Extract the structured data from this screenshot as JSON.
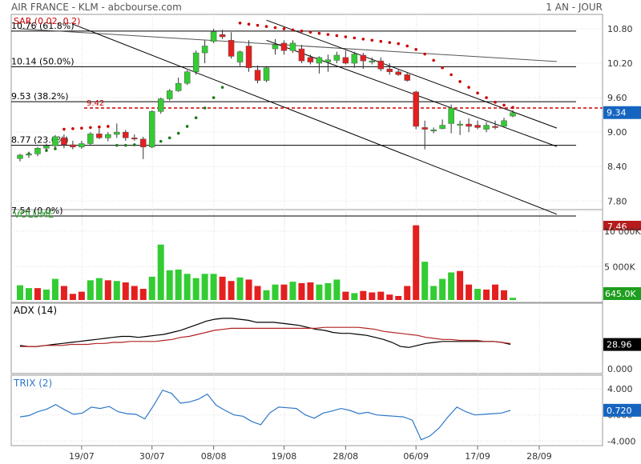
{
  "header": {
    "title": "AIR FRANCE - KLM - abcbourse.com",
    "period": "1 AN - JOUR"
  },
  "colors": {
    "up": "#33cc33",
    "down": "#e41f1f",
    "sar": "#cc0000",
    "sar_up": "#1a7a1a",
    "adx": "#000000",
    "adx_signal": "#b22222",
    "trix": "#2e78c8",
    "last_price_bg": "#1565c0",
    "volume_badge_bg": "#1e9e1e",
    "prev_badge_bg": "#b71c1c",
    "adx_badge_bg": "#000000",
    "trix_badge_bg": "#1565c0"
  },
  "chart_data": [
    {
      "type": "candlestick",
      "panel": "price",
      "legend": "SAR (0.02, 0.2)",
      "ylim": [
        7.4,
        11.05
      ],
      "yticks": [
        "10.80",
        "10.20",
        "9.60",
        "9.00",
        "8.40",
        "7.80"
      ],
      "ytick_values": [
        10.8,
        10.2,
        9.6,
        9.0,
        8.4,
        7.8
      ],
      "x_labels": [
        "19/07",
        "30/07",
        "08/08",
        "19/08",
        "28/08",
        "06/09",
        "17/09",
        "28/09"
      ],
      "x_label_index": [
        7,
        15,
        22,
        30,
        37,
        45,
        52,
        59
      ],
      "n_slots": 62,
      "last_price": "9.34",
      "prev_price": "7.46",
      "reference_line": {
        "label": "9.42",
        "value": 9.42
      },
      "fibonacci": [
        {
          "label": "10.76  (61.8%)",
          "value": 10.76
        },
        {
          "label": "10.14  (50.0%)",
          "value": 10.14
        },
        {
          "label": "9.53  (38.2%)",
          "value": 9.53
        },
        {
          "label": "8.77  (23.6%)",
          "value": 8.77
        },
        {
          "label": "7.54  (0.0%)",
          "value": 7.54
        }
      ],
      "trendlines": [
        {
          "x1": 0,
          "y1": 10.8,
          "x2": 61,
          "y2": 10.23
        },
        {
          "x1": 6,
          "y1": 10.88,
          "x2": 61,
          "y2": 7.57
        },
        {
          "x1": 28,
          "y1": 10.95,
          "x2": 61,
          "y2": 9.07
        },
        {
          "x1": 28,
          "y1": 10.6,
          "x2": 61,
          "y2": 8.75
        }
      ],
      "candles": [
        {
          "o": 8.54,
          "h": 8.62,
          "l": 8.49,
          "c": 8.6
        },
        {
          "o": 8.6,
          "h": 8.66,
          "l": 8.55,
          "c": 8.62
        },
        {
          "o": 8.62,
          "h": 8.74,
          "l": 8.58,
          "c": 8.72
        },
        {
          "o": 8.72,
          "h": 8.8,
          "l": 8.68,
          "c": 8.76
        },
        {
          "o": 8.76,
          "h": 8.95,
          "l": 8.72,
          "c": 8.92
        },
        {
          "o": 8.9,
          "h": 8.96,
          "l": 8.72,
          "c": 8.78
        },
        {
          "o": 8.78,
          "h": 8.85,
          "l": 8.7,
          "c": 8.74
        },
        {
          "o": 8.74,
          "h": 8.85,
          "l": 8.71,
          "c": 8.8
        },
        {
          "o": 8.8,
          "h": 9.0,
          "l": 8.77,
          "c": 8.97
        },
        {
          "o": 8.97,
          "h": 9.06,
          "l": 8.88,
          "c": 8.9
        },
        {
          "o": 8.9,
          "h": 9.0,
          "l": 8.84,
          "c": 8.96
        },
        {
          "o": 8.96,
          "h": 9.15,
          "l": 8.9,
          "c": 9.0
        },
        {
          "o": 9.0,
          "h": 9.04,
          "l": 8.85,
          "c": 8.9
        },
        {
          "o": 8.9,
          "h": 8.96,
          "l": 8.85,
          "c": 8.88
        },
        {
          "o": 8.88,
          "h": 8.92,
          "l": 8.53,
          "c": 8.74
        },
        {
          "o": 8.74,
          "h": 9.38,
          "l": 8.72,
          "c": 9.36
        },
        {
          "o": 9.36,
          "h": 9.6,
          "l": 9.32,
          "c": 9.58
        },
        {
          "o": 9.58,
          "h": 9.75,
          "l": 9.55,
          "c": 9.72
        },
        {
          "o": 9.72,
          "h": 9.95,
          "l": 9.7,
          "c": 9.85
        },
        {
          "o": 9.85,
          "h": 10.08,
          "l": 9.82,
          "c": 10.05
        },
        {
          "o": 10.05,
          "h": 10.42,
          "l": 10.0,
          "c": 10.38
        },
        {
          "o": 10.38,
          "h": 10.6,
          "l": 10.2,
          "c": 10.5
        },
        {
          "o": 10.58,
          "h": 10.8,
          "l": 10.55,
          "c": 10.75
        },
        {
          "o": 10.7,
          "h": 10.78,
          "l": 10.62,
          "c": 10.66
        },
        {
          "o": 10.6,
          "h": 10.74,
          "l": 10.28,
          "c": 10.32
        },
        {
          "o": 10.22,
          "h": 10.42,
          "l": 10.15,
          "c": 10.4
        },
        {
          "o": 10.5,
          "h": 10.6,
          "l": 10.05,
          "c": 10.12
        },
        {
          "o": 10.08,
          "h": 10.16,
          "l": 9.85,
          "c": 9.9
        },
        {
          "o": 9.9,
          "h": 10.15,
          "l": 9.87,
          "c": 10.12
        },
        {
          "o": 10.45,
          "h": 10.62,
          "l": 10.35,
          "c": 10.52
        },
        {
          "o": 10.55,
          "h": 10.6,
          "l": 10.35,
          "c": 10.42
        },
        {
          "o": 10.42,
          "h": 10.6,
          "l": 10.38,
          "c": 10.55
        },
        {
          "o": 10.45,
          "h": 10.52,
          "l": 10.2,
          "c": 10.24
        },
        {
          "o": 10.3,
          "h": 10.35,
          "l": 10.18,
          "c": 10.22
        },
        {
          "o": 10.2,
          "h": 10.32,
          "l": 10.02,
          "c": 10.3
        },
        {
          "o": 10.22,
          "h": 10.35,
          "l": 10.05,
          "c": 10.26
        },
        {
          "o": 10.25,
          "h": 10.4,
          "l": 10.2,
          "c": 10.34
        },
        {
          "o": 10.3,
          "h": 10.42,
          "l": 10.18,
          "c": 10.2
        },
        {
          "o": 10.2,
          "h": 10.4,
          "l": 10.12,
          "c": 10.36
        },
        {
          "o": 10.34,
          "h": 10.38,
          "l": 10.1,
          "c": 10.24
        },
        {
          "o": 10.22,
          "h": 10.3,
          "l": 10.18,
          "c": 10.24
        },
        {
          "o": 10.24,
          "h": 10.3,
          "l": 10.06,
          "c": 10.1
        },
        {
          "o": 10.1,
          "h": 10.2,
          "l": 10.0,
          "c": 10.05
        },
        {
          "o": 10.05,
          "h": 10.1,
          "l": 9.98,
          "c": 10.0
        },
        {
          "o": 10.0,
          "h": 10.04,
          "l": 9.88,
          "c": 9.9
        },
        {
          "o": 9.7,
          "h": 9.72,
          "l": 9.05,
          "c": 9.1
        },
        {
          "o": 9.08,
          "h": 9.2,
          "l": 8.7,
          "c": 9.05
        },
        {
          "o": 9.02,
          "h": 9.08,
          "l": 8.98,
          "c": 9.04
        },
        {
          "o": 9.06,
          "h": 9.22,
          "l": 9.05,
          "c": 9.12
        },
        {
          "o": 9.15,
          "h": 9.48,
          "l": 8.98,
          "c": 9.42
        },
        {
          "o": 9.12,
          "h": 9.2,
          "l": 8.95,
          "c": 9.14
        },
        {
          "o": 9.14,
          "h": 9.24,
          "l": 9.0,
          "c": 9.1
        },
        {
          "o": 9.12,
          "h": 9.2,
          "l": 9.05,
          "c": 9.08
        },
        {
          "o": 9.05,
          "h": 9.18,
          "l": 9.0,
          "c": 9.12
        },
        {
          "o": 9.1,
          "h": 9.2,
          "l": 9.05,
          "c": 9.08
        },
        {
          "o": 9.1,
          "h": 9.25,
          "l": 9.08,
          "c": 9.2
        },
        {
          "o": 9.28,
          "h": 9.38,
          "l": 9.26,
          "c": 9.34
        }
      ],
      "sar": [
        {
          "i": 0,
          "v": 8.58,
          "t": "up"
        },
        {
          "i": 1,
          "v": 8.62,
          "t": "up"
        },
        {
          "i": 2,
          "v": 8.66,
          "t": "up"
        },
        {
          "i": 3,
          "v": 8.68,
          "t": "up"
        },
        {
          "i": 4,
          "v": 8.71,
          "t": "up"
        },
        {
          "i": 5,
          "v": 9.05,
          "t": "dn"
        },
        {
          "i": 6,
          "v": 9.06,
          "t": "dn"
        },
        {
          "i": 7,
          "v": 9.07,
          "t": "dn"
        },
        {
          "i": 8,
          "v": 9.08,
          "t": "dn"
        },
        {
          "i": 9,
          "v": 9.09,
          "t": "dn"
        },
        {
          "i": 10,
          "v": 9.1,
          "t": "dn"
        },
        {
          "i": 11,
          "v": 8.77,
          "t": "up"
        },
        {
          "i": 12,
          "v": 8.77,
          "t": "up"
        },
        {
          "i": 13,
          "v": 8.78,
          "t": "up"
        },
        {
          "i": 14,
          "v": 8.78,
          "t": "up"
        },
        {
          "i": 15,
          "v": 8.8,
          "t": "up"
        },
        {
          "i": 16,
          "v": 8.84,
          "t": "up"
        },
        {
          "i": 17,
          "v": 8.9,
          "t": "up"
        },
        {
          "i": 18,
          "v": 8.98,
          "t": "up"
        },
        {
          "i": 19,
          "v": 9.1,
          "t": "up"
        },
        {
          "i": 20,
          "v": 9.25,
          "t": "up"
        },
        {
          "i": 21,
          "v": 9.42,
          "t": "up"
        },
        {
          "i": 22,
          "v": 9.6,
          "t": "up"
        },
        {
          "i": 23,
          "v": 9.78,
          "t": "up"
        },
        {
          "i": 25,
          "v": 10.9,
          "t": "dn"
        },
        {
          "i": 26,
          "v": 10.88,
          "t": "dn"
        },
        {
          "i": 27,
          "v": 10.86,
          "t": "dn"
        },
        {
          "i": 28,
          "v": 10.84,
          "t": "dn"
        },
        {
          "i": 29,
          "v": 10.82,
          "t": "dn"
        },
        {
          "i": 30,
          "v": 10.8,
          "t": "dn"
        },
        {
          "i": 31,
          "v": 10.78,
          "t": "dn"
        },
        {
          "i": 32,
          "v": 10.76,
          "t": "dn"
        },
        {
          "i": 33,
          "v": 10.74,
          "t": "dn"
        },
        {
          "i": 34,
          "v": 10.72,
          "t": "dn"
        },
        {
          "i": 35,
          "v": 10.7,
          "t": "dn"
        },
        {
          "i": 36,
          "v": 10.68,
          "t": "dn"
        },
        {
          "i": 37,
          "v": 10.66,
          "t": "dn"
        },
        {
          "i": 38,
          "v": 10.64,
          "t": "dn"
        },
        {
          "i": 39,
          "v": 10.62,
          "t": "dn"
        },
        {
          "i": 40,
          "v": 10.6,
          "t": "dn"
        },
        {
          "i": 41,
          "v": 10.58,
          "t": "dn"
        },
        {
          "i": 42,
          "v": 10.56,
          "t": "dn"
        },
        {
          "i": 43,
          "v": 10.54,
          "t": "dn"
        },
        {
          "i": 44,
          "v": 10.5,
          "t": "dn"
        },
        {
          "i": 45,
          "v": 10.44,
          "t": "dn"
        },
        {
          "i": 46,
          "v": 10.36,
          "t": "dn"
        },
        {
          "i": 47,
          "v": 10.25,
          "t": "dn"
        },
        {
          "i": 48,
          "v": 10.12,
          "t": "dn"
        },
        {
          "i": 49,
          "v": 10.0,
          "t": "dn"
        },
        {
          "i": 50,
          "v": 9.88,
          "t": "dn"
        },
        {
          "i": 51,
          "v": 9.78,
          "t": "dn"
        },
        {
          "i": 52,
          "v": 9.68,
          "t": "dn"
        },
        {
          "i": 53,
          "v": 9.6,
          "t": "dn"
        },
        {
          "i": 54,
          "v": 9.52,
          "t": "dn"
        },
        {
          "i": 55,
          "v": 9.47,
          "t": "dn"
        },
        {
          "i": 56,
          "v": 9.43,
          "t": "dn"
        }
      ]
    },
    {
      "type": "bar",
      "panel": "volume",
      "legend": "VOLUME",
      "ylim": [
        0,
        13000
      ],
      "yticks": [
        "10 000K",
        "5 000K"
      ],
      "ytick_values": [
        10000,
        5000
      ],
      "last_value": "645.0K",
      "values": [
        2400,
        2000,
        2000,
        1800,
        3300,
        2300,
        1200,
        1500,
        3100,
        3400,
        3100,
        3000,
        2800,
        2300,
        1900,
        3600,
        8100,
        4500,
        4600,
        4000,
        3400,
        4000,
        4000,
        3600,
        3000,
        3500,
        3200,
        2300,
        1700,
        2500,
        2500,
        2900,
        2700,
        2800,
        2500,
        2700,
        3200,
        1500,
        1300,
        1600,
        1400,
        1500,
        1100,
        900,
        2300,
        10800,
        5700,
        2300,
        3300,
        4200,
        4400,
        2500,
        1900,
        1800,
        2500,
        1700,
        645
      ],
      "directions": [
        "u",
        "u",
        "d",
        "u",
        "u",
        "d",
        "d",
        "d",
        "u",
        "u",
        "d",
        "u",
        "d",
        "d",
        "d",
        "u",
        "u",
        "u",
        "u",
        "u",
        "u",
        "u",
        "u",
        "d",
        "d",
        "u",
        "d",
        "d",
        "u",
        "u",
        "d",
        "u",
        "d",
        "d",
        "u",
        "u",
        "u",
        "d",
        "u",
        "d",
        "d",
        "d",
        "d",
        "d",
        "d",
        "d",
        "u",
        "u",
        "u",
        "u",
        "d",
        "d",
        "u",
        "d",
        "d",
        "d",
        "u"
      ]
    },
    {
      "type": "line",
      "panel": "adx",
      "legend": "ADX (14)",
      "ylim": [
        0,
        70
      ],
      "yticks": [
        "0.000"
      ],
      "ytick_values": [
        0
      ],
      "last_value": "28.96",
      "series": [
        {
          "role": "adx",
          "values": [
            28,
            27,
            27,
            28,
            29,
            30,
            31,
            32,
            33,
            34,
            35,
            36,
            37,
            37,
            36,
            37,
            38,
            39,
            41,
            43,
            46,
            49,
            52,
            54,
            55,
            55,
            54,
            53,
            51,
            51,
            51,
            50,
            49,
            48,
            46,
            44,
            43,
            41,
            40,
            40,
            39,
            38,
            36,
            34,
            31,
            27,
            26,
            28,
            30,
            31,
            32,
            32,
            32,
            32,
            32,
            32,
            32,
            31,
            29
          ]
        },
        {
          "role": "signal",
          "values": [
            27,
            27,
            27,
            28,
            28,
            28,
            29,
            29,
            29,
            30,
            30,
            31,
            31,
            32,
            32,
            32,
            32,
            33,
            34,
            36,
            37,
            39,
            41,
            43,
            44,
            45,
            45,
            45,
            45,
            45,
            45,
            45,
            45,
            45,
            45,
            45,
            46,
            46,
            46,
            46,
            46,
            45,
            44,
            42,
            41,
            40,
            39,
            38,
            36,
            35,
            34,
            34,
            33,
            33,
            33,
            32,
            32,
            31,
            30
          ]
        }
      ]
    },
    {
      "type": "line",
      "panel": "trix",
      "legend": "TRIX (2)",
      "ylim": [
        -4.7,
        6.1
      ],
      "yticks": [
        "4.000",
        "0.000",
        "-4.000"
      ],
      "ytick_values": [
        4,
        0,
        -4
      ],
      "last_value": "0.720",
      "series": [
        {
          "role": "trix",
          "values": [
            -0.3,
            -0.1,
            0.5,
            0.9,
            1.6,
            0.8,
            0.1,
            0.3,
            1.2,
            1.0,
            1.3,
            0.5,
            0.2,
            0.1,
            -0.6,
            1.5,
            3.8,
            3.3,
            1.8,
            2.0,
            2.4,
            3.2,
            1.5,
            0.7,
            0.0,
            -0.2,
            -1.0,
            -1.5,
            0.3,
            1.2,
            1.1,
            1.0,
            0.0,
            -0.5,
            0.3,
            0.6,
            1.0,
            0.7,
            0.2,
            0.4,
            0.0,
            -0.1,
            -0.2,
            -0.3,
            -0.8,
            -3.8,
            -3.2,
            -2.0,
            -0.3,
            1.2,
            0.5,
            0.0,
            0.1,
            0.2,
            0.3,
            0.7
          ]
        }
      ]
    }
  ]
}
